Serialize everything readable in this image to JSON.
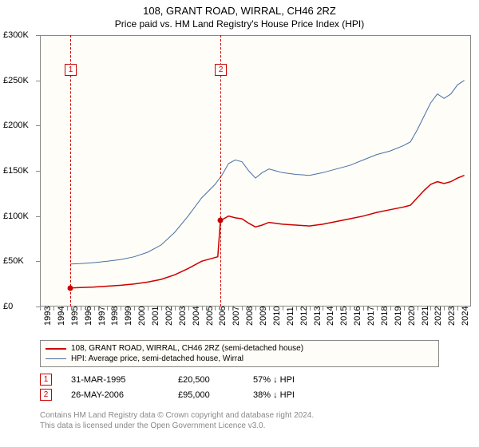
{
  "title": "108, GRANT ROAD, WIRRAL, CH46 2RZ",
  "subtitle": "Price paid vs. HM Land Registry's House Price Index (HPI)",
  "chart": {
    "type": "line",
    "background_color": "#fefdf7",
    "border_color": "#888888",
    "x_years": [
      1993,
      1994,
      1995,
      1996,
      1997,
      1998,
      1999,
      2000,
      2001,
      2002,
      2003,
      2004,
      2005,
      2006,
      2007,
      2008,
      2009,
      2010,
      2011,
      2012,
      2013,
      2014,
      2015,
      2016,
      2017,
      2018,
      2019,
      2020,
      2021,
      2022,
      2023,
      2024
    ],
    "xlim": [
      1993,
      2025
    ],
    "ylim": [
      0,
      300000
    ],
    "ytick_step": 50000,
    "yticks": [
      "£0",
      "£50K",
      "£100K",
      "£150K",
      "£200K",
      "£250K",
      "£300K"
    ],
    "series": [
      {
        "name": "108, GRANT ROAD, WIRRAL, CH46 2RZ (semi-detached house)",
        "color": "#cc0000",
        "width": 1.5,
        "points": [
          [
            1995.25,
            20500
          ],
          [
            1996,
            21000
          ],
          [
            1997,
            21500
          ],
          [
            1998,
            22500
          ],
          [
            1999,
            23500
          ],
          [
            2000,
            25000
          ],
          [
            2001,
            27000
          ],
          [
            2002,
            30000
          ],
          [
            2003,
            35000
          ],
          [
            2004,
            42000
          ],
          [
            2005,
            50000
          ],
          [
            2006.2,
            55000
          ],
          [
            2006.4,
            95000
          ],
          [
            2007,
            100000
          ],
          [
            2007.5,
            98000
          ],
          [
            2008,
            97000
          ],
          [
            2008.5,
            92000
          ],
          [
            2009,
            88000
          ],
          [
            2009.5,
            90000
          ],
          [
            2010,
            93000
          ],
          [
            2010.5,
            92000
          ],
          [
            2011,
            91000
          ],
          [
            2012,
            90000
          ],
          [
            2013,
            89000
          ],
          [
            2014,
            91000
          ],
          [
            2015,
            94000
          ],
          [
            2016,
            97000
          ],
          [
            2017,
            100000
          ],
          [
            2018,
            104000
          ],
          [
            2019,
            107000
          ],
          [
            2020,
            110000
          ],
          [
            2020.5,
            112000
          ],
          [
            2021,
            120000
          ],
          [
            2021.5,
            128000
          ],
          [
            2022,
            135000
          ],
          [
            2022.5,
            138000
          ],
          [
            2023,
            136000
          ],
          [
            2023.5,
            138000
          ],
          [
            2024,
            142000
          ],
          [
            2024.5,
            145000
          ]
        ]
      },
      {
        "name": "HPI: Average price, semi-detached house, Wirral",
        "color": "#4a6fa5",
        "width": 1,
        "points": [
          [
            1995.25,
            47000
          ],
          [
            1996,
            47500
          ],
          [
            1997,
            48500
          ],
          [
            1998,
            50000
          ],
          [
            1999,
            52000
          ],
          [
            2000,
            55000
          ],
          [
            2001,
            60000
          ],
          [
            2002,
            68000
          ],
          [
            2003,
            82000
          ],
          [
            2004,
            100000
          ],
          [
            2005,
            120000
          ],
          [
            2006,
            135000
          ],
          [
            2006.5,
            145000
          ],
          [
            2007,
            158000
          ],
          [
            2007.5,
            162000
          ],
          [
            2008,
            160000
          ],
          [
            2008.5,
            150000
          ],
          [
            2009,
            142000
          ],
          [
            2009.5,
            148000
          ],
          [
            2010,
            152000
          ],
          [
            2010.5,
            150000
          ],
          [
            2011,
            148000
          ],
          [
            2012,
            146000
          ],
          [
            2013,
            145000
          ],
          [
            2014,
            148000
          ],
          [
            2015,
            152000
          ],
          [
            2016,
            156000
          ],
          [
            2017,
            162000
          ],
          [
            2018,
            168000
          ],
          [
            2019,
            172000
          ],
          [
            2020,
            178000
          ],
          [
            2020.5,
            182000
          ],
          [
            2021,
            195000
          ],
          [
            2021.5,
            210000
          ],
          [
            2022,
            225000
          ],
          [
            2022.5,
            235000
          ],
          [
            2023,
            230000
          ],
          [
            2023.5,
            235000
          ],
          [
            2024,
            245000
          ],
          [
            2024.5,
            250000
          ]
        ]
      }
    ],
    "transactions": [
      {
        "n": 1,
        "date": "31-MAR-1995",
        "x": 1995.25,
        "price": 20500,
        "price_label": "£20,500",
        "hpi_label": "57% ↓ HPI",
        "color": "#cc0000"
      },
      {
        "n": 2,
        "date": "26-MAY-2006",
        "x": 2006.4,
        "price": 95000,
        "price_label": "£95,000",
        "hpi_label": "38% ↓ HPI",
        "color": "#cc0000"
      }
    ]
  },
  "legend": {
    "s1": "108, GRANT ROAD, WIRRAL, CH46 2RZ (semi-detached house)",
    "s2": "HPI: Average price, semi-detached house, Wirral"
  },
  "footer": {
    "l1": "Contains HM Land Registry data © Crown copyright and database right 2024.",
    "l2": "This data is licensed under the Open Government Licence v3.0."
  }
}
